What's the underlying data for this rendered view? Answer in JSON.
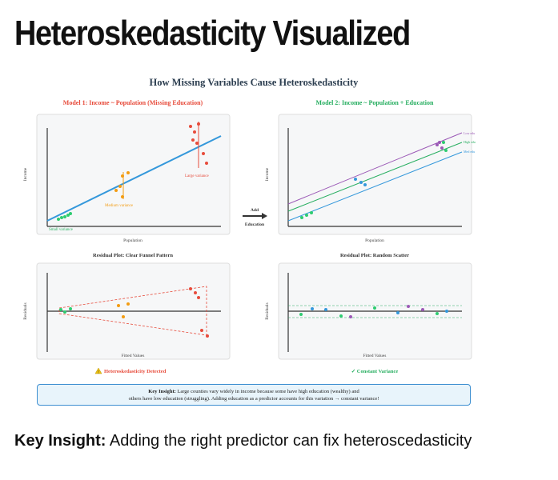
{
  "title": "Heteroskedasticity Visualized",
  "diagram": {
    "heading": "How Missing Variables Cause Heteroskedasticity",
    "model1_title": "Model 1: Income ~ Population (Missing Education)",
    "model2_title": "Model 2: Income ~ Population + Education",
    "y_label_income": "Income",
    "x_label_population": "Population",
    "y_label_residuals": "Residuals",
    "x_label_fitted": "Fitted Values",
    "small_variance": "Small variance",
    "medium_variance": "Medium variance",
    "large_variance": "Large variance",
    "arrow_top": "Add",
    "arrow_bottom": "Education",
    "legend_low": "Low edu",
    "legend_high": "High edu",
    "legend_med": "Med edu",
    "residual1_title": "Residual Plot: Clear Funnel Pattern",
    "residual2_title": "Residual Plot: Random Scatter",
    "warning_text": "Heteroskedasticity Detected",
    "warning_icon": "warning-icon",
    "check_text": "✓ Constant Variance",
    "insight_label": "Key Insight:",
    "insight_line1": "Large counties vary widely in income because some have high education (wealthy) and",
    "insight_line2": "others have low education (struggling). Adding education as a predictor accounts for this variation → constant variance!",
    "colors": {
      "red": "#e74c3c",
      "green": "#27ae60",
      "orange": "#f39c12",
      "blue": "#3498db",
      "purple": "#9b59b6",
      "panel": "#f6f7f8"
    }
  },
  "bottom_label": "Key Insight:",
  "bottom_text": " Adding the right predictor can fix heteroscedasticity"
}
